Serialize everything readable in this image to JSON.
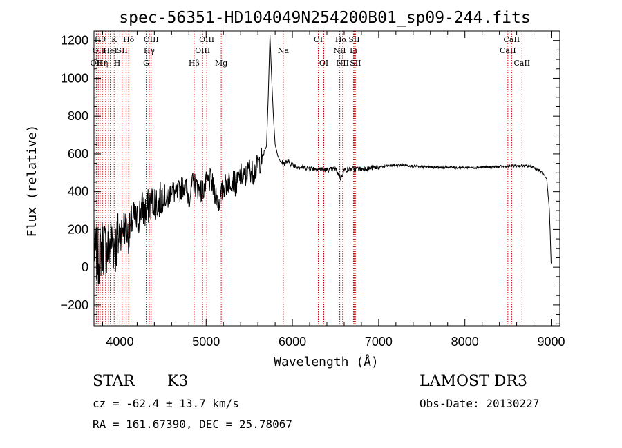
{
  "chart_data": {
    "type": "line",
    "title": "spec-56351-HD104049N254200B01_sp09-244.fits",
    "xlabel": "Wavelength (Å)",
    "ylabel": "Flux (relative)",
    "xlim": [
      3700,
      9100
    ],
    "ylim": [
      -310,
      1250
    ],
    "xticks": [
      4000,
      5000,
      6000,
      7000,
      8000,
      9000
    ],
    "yticks": [
      -200,
      0,
      200,
      400,
      600,
      800,
      1000,
      1200
    ],
    "grid": false,
    "line_color": "#000000",
    "marker_color": "#cc0000",
    "series": [
      {
        "name": "Flux",
        "x": [
          3700,
          3750,
          3800,
          3850,
          3900,
          3950,
          4000,
          4050,
          4100,
          4150,
          4200,
          4250,
          4300,
          4350,
          4400,
          4450,
          4500,
          4550,
          4600,
          4650,
          4700,
          4750,
          4800,
          4850,
          4900,
          4950,
          5000,
          5050,
          5100,
          5150,
          5200,
          5250,
          5300,
          5350,
          5400,
          5450,
          5500,
          5550,
          5600,
          5650,
          5700,
          5720,
          5740,
          5760,
          5780,
          5800,
          5830,
          5860,
          5900,
          5950,
          6000,
          6100,
          6200,
          6300,
          6400,
          6500,
          6560,
          6600,
          6700,
          6800,
          6900,
          7000,
          7100,
          7200,
          7300,
          7400,
          7500,
          7600,
          7700,
          7800,
          7900,
          8000,
          8100,
          8200,
          8300,
          8400,
          8500,
          8600,
          8700,
          8800,
          8850,
          8900,
          8950,
          8980,
          9000
        ],
        "values": [
          100,
          50,
          120,
          80,
          150,
          110,
          180,
          220,
          170,
          260,
          240,
          320,
          290,
          340,
          360,
          330,
          390,
          350,
          420,
          380,
          410,
          440,
          370,
          450,
          420,
          400,
          440,
          460,
          400,
          340,
          420,
          450,
          470,
          430,
          490,
          470,
          520,
          500,
          540,
          580,
          640,
          900,
          1230,
          1000,
          800,
          650,
          590,
          560,
          550,
          560,
          540,
          530,
          525,
          520,
          515,
          520,
          470,
          515,
          520,
          520,
          525,
          530,
          535,
          540,
          540,
          535,
          530,
          530,
          530,
          530,
          528,
          528,
          528,
          530,
          530,
          532,
          534,
          536,
          536,
          530,
          515,
          500,
          460,
          300,
          20
        ]
      }
    ],
    "lines": [
      {
        "wl": 3727,
        "label": "OII",
        "row": 3
      },
      {
        "wl": 3750,
        "label": "OII",
        "row": 2
      },
      {
        "wl": 3771,
        "label": "Hθ",
        "row": 1
      },
      {
        "wl": 3798,
        "label": "Hη",
        "row": 3
      },
      {
        "wl": 3835,
        "label": "",
        "row": 0
      },
      {
        "wl": 3869,
        "label": "",
        "row": 0
      },
      {
        "wl": 3889,
        "label": "HeI",
        "row": 2
      },
      {
        "wl": 3934,
        "label": "K",
        "row": 1
      },
      {
        "wl": 3969,
        "label": "H",
        "row": 3
      },
      {
        "wl": 4026,
        "label": "SII",
        "row": 2
      },
      {
        "wl": 4072,
        "label": "",
        "row": 0
      },
      {
        "wl": 4102,
        "label": "Hδ",
        "row": 1
      },
      {
        "wl": 4305,
        "label": "G",
        "row": 3
      },
      {
        "wl": 4341,
        "label": "Hγ",
        "row": 2
      },
      {
        "wl": 4363,
        "label": "OIII",
        "row": 1
      },
      {
        "wl": 4861,
        "label": "Hβ",
        "row": 3
      },
      {
        "wl": 4959,
        "label": "OIII",
        "row": 2
      },
      {
        "wl": 5007,
        "label": "OIII",
        "row": 1
      },
      {
        "wl": 5175,
        "label": "Mg",
        "row": 3
      },
      {
        "wl": 5894,
        "label": "Na",
        "row": 2
      },
      {
        "wl": 6300,
        "label": "OI",
        "row": 1
      },
      {
        "wl": 6364,
        "label": "OI",
        "row": 3
      },
      {
        "wl": 6548,
        "label": "NII",
        "row": 2
      },
      {
        "wl": 6563,
        "label": "Hα",
        "row": 1
      },
      {
        "wl": 6583,
        "label": "NII",
        "row": 3
      },
      {
        "wl": 6708,
        "label": "Li",
        "row": 2
      },
      {
        "wl": 6716,
        "label": "SII",
        "row": 1
      },
      {
        "wl": 6731,
        "label": "SII",
        "row": 3
      },
      {
        "wl": 8498,
        "label": "CaII",
        "row": 2
      },
      {
        "wl": 8542,
        "label": "CaII",
        "row": 1
      },
      {
        "wl": 8662,
        "label": "CaII",
        "row": 3
      }
    ]
  },
  "info": {
    "object_type": "STAR",
    "subclass": "K3",
    "survey": "LAMOST DR3",
    "cz": "cz = -62.4 ± 13.7 km/s",
    "obs_date": "Obs-Date: 20130227",
    "coords": "RA = 161.67390, DEC =  25.78067"
  }
}
